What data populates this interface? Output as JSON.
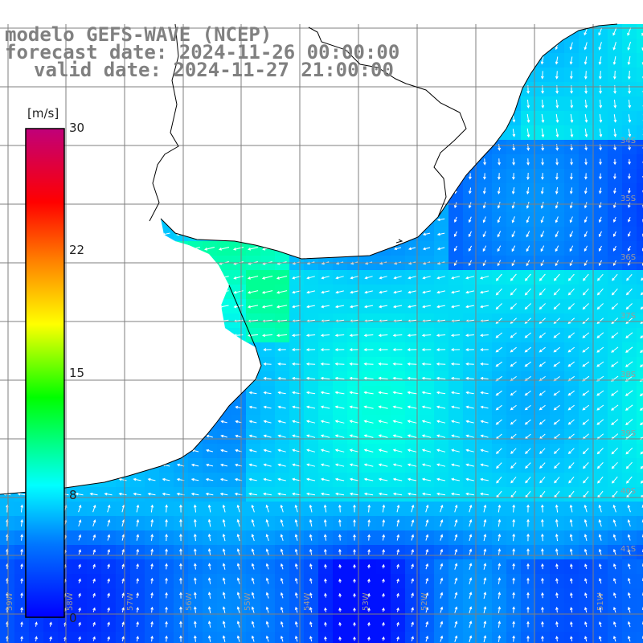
{
  "title": {
    "line1": "modelo GEFS-WAVE (NCEP)",
    "line2": "forecast date: 2024-11-26 00:00:00",
    "line3": "valid date: 2024-11-27 21:00:00"
  },
  "colorbar": {
    "unit": "[m/s]",
    "ticks": [
      "30",
      "22",
      "15",
      "8",
      "0"
    ],
    "min": 0,
    "max": 30,
    "colors": [
      "#0000ff",
      "#0077ff",
      "#00ffff",
      "#00ff00",
      "#ffff00",
      "#ff8000",
      "#ff0000",
      "#c0007a"
    ]
  },
  "grid": {
    "lon_labels": [
      "59W",
      "58W",
      "57W",
      "56W",
      "55W",
      "54W",
      "53W",
      "52W",
      "51W"
    ],
    "lat_labels": [
      "34S",
      "35S",
      "36S",
      "37S",
      "38S",
      "39S",
      "40S",
      "41S"
    ]
  },
  "field": {
    "variable": "wind speed and direction",
    "land_color": "#ffffff",
    "coastline_color": "#000000",
    "arrow_color": "#ffffff"
  }
}
